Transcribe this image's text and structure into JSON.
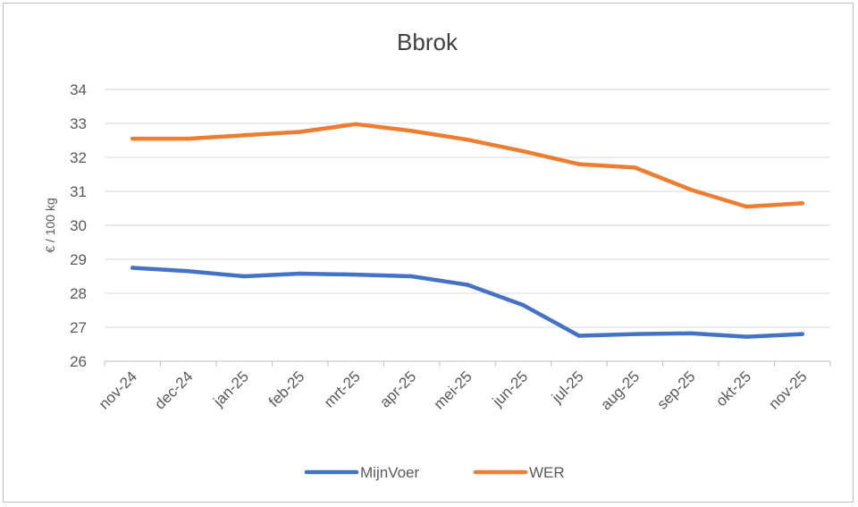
{
  "chart_data": {
    "type": "line",
    "title": "Bbrok",
    "xlabel": "",
    "ylabel": "€ / 100 kg",
    "ylim": [
      26,
      34
    ],
    "yticks": [
      26,
      27,
      28,
      29,
      30,
      31,
      32,
      33,
      34
    ],
    "categories": [
      "nov-24",
      "dec-24",
      "jan-25",
      "feb-25",
      "mrt-25",
      "apr-25",
      "mei-25",
      "jun-25",
      "jul-25",
      "aug-25",
      "sep-25",
      "okt-25",
      "nov-25"
    ],
    "series": [
      {
        "name": "MijnVoer",
        "color": "#4472C4",
        "values": [
          28.75,
          28.65,
          28.5,
          28.58,
          28.55,
          28.5,
          28.25,
          27.65,
          26.75,
          26.8,
          26.82,
          26.72,
          26.8
        ]
      },
      {
        "name": "WER",
        "color": "#ED7D31",
        "values": [
          32.55,
          32.55,
          32.65,
          32.75,
          32.98,
          32.78,
          32.52,
          32.18,
          31.8,
          31.7,
          31.05,
          30.55,
          30.65
        ]
      }
    ],
    "grid": true,
    "legend": "bottom"
  }
}
